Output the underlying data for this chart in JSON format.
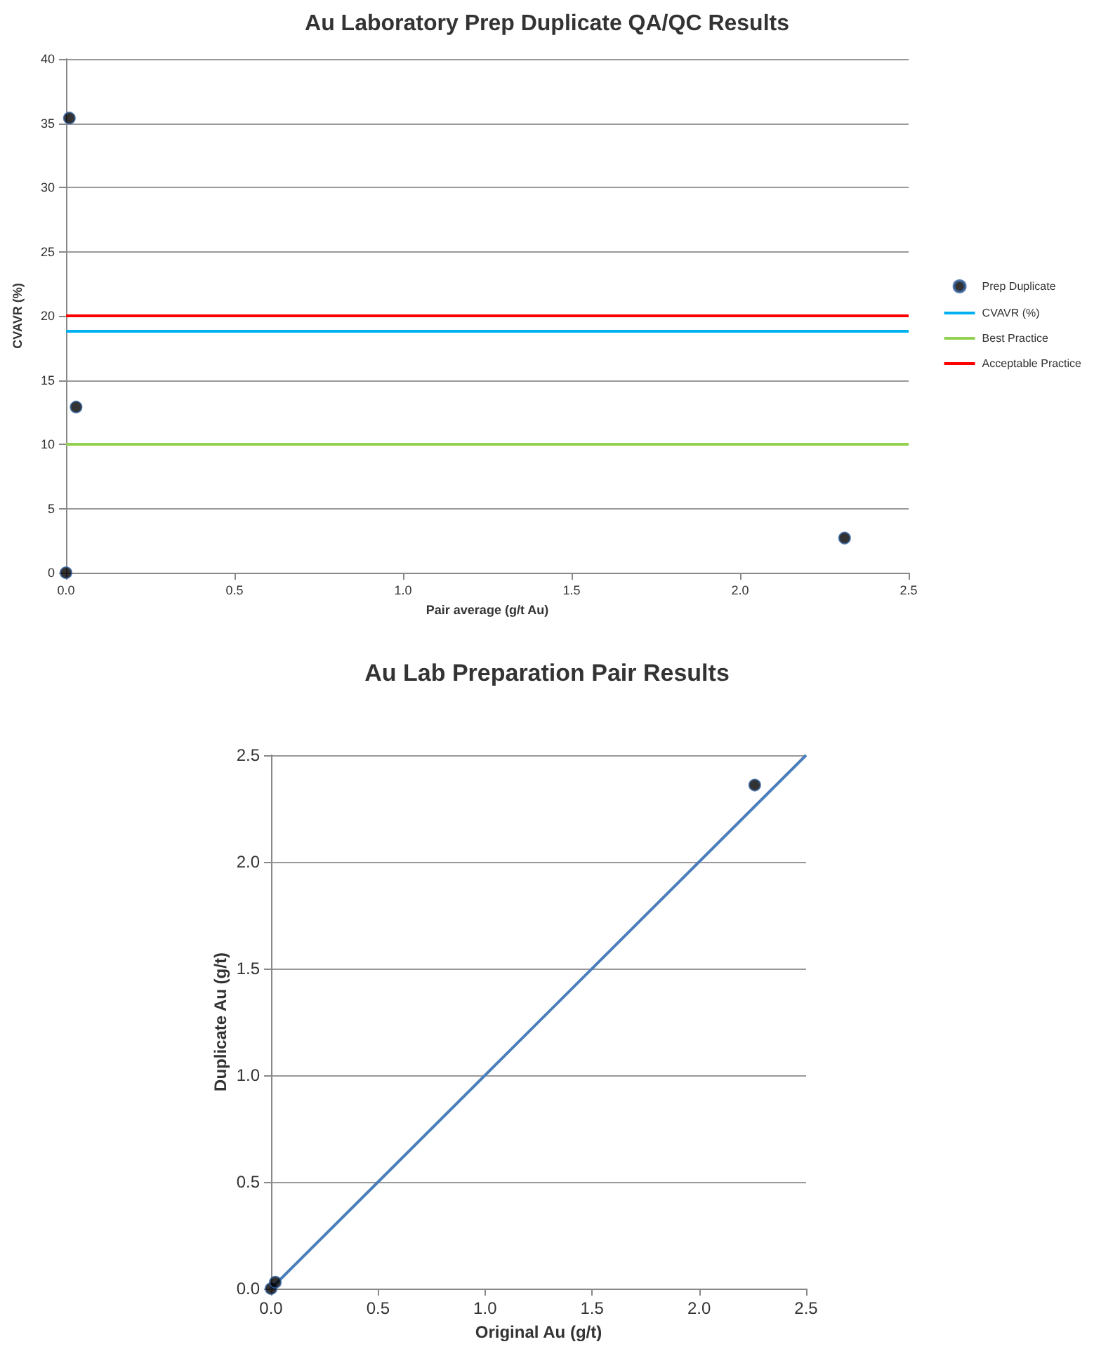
{
  "chart_data": [
    {
      "type": "scatter",
      "title": "Au Laboratory Prep Duplicate QA/QC Results",
      "xlabel": "Pair average (g/t Au)",
      "ylabel": "CVAVR (%)",
      "xlim": [
        0,
        2.5
      ],
      "xticks": [
        {
          "value": 0,
          "label": "0.0"
        },
        {
          "value": 0.5,
          "label": "0.5"
        },
        {
          "value": 1,
          "label": "1.0"
        },
        {
          "value": 1.5,
          "label": "1.5"
        },
        {
          "value": 2,
          "label": "2.0"
        },
        {
          "value": 2.5,
          "label": "2.5"
        }
      ],
      "ylim": [
        0,
        40
      ],
      "yticks": [
        0,
        5,
        10,
        15,
        20,
        25,
        30,
        35,
        40
      ],
      "grid": "y",
      "legend": "right",
      "series": [
        {
          "name": "Prep Duplicate",
          "marker": "circle",
          "color": "#000000",
          "x": [
            0.0,
            0.01,
            0.03,
            2.31
          ],
          "values": [
            0,
            35.4,
            12.9,
            2.7
          ]
        },
        {
          "name": "CVAVR (%)",
          "type": "line",
          "marker": "none",
          "color": "#00b0f0",
          "x": [
            0,
            2.5
          ],
          "values": [
            18.8,
            18.8
          ]
        },
        {
          "name": "Best Practice",
          "type": "line",
          "marker": "none",
          "color": "#92d050",
          "x": [
            0,
            2.5
          ],
          "values": [
            10,
            10
          ]
        },
        {
          "name": "Acceptable Practice",
          "type": "line",
          "marker": "none",
          "color": "#ff0000",
          "x": [
            0,
            2.5
          ],
          "values": [
            20,
            20
          ]
        }
      ]
    },
    {
      "type": "scatter",
      "title": "Au Lab Preparation Pair Results",
      "xlabel": "Original Au (g/t)",
      "ylabel": "Duplicate Au (g/t)",
      "xlim": [
        0,
        2.5
      ],
      "xticks": [
        {
          "value": 0,
          "label": "0.0"
        },
        {
          "value": 0.5,
          "label": "0.5"
        },
        {
          "value": 1,
          "label": "1.0"
        },
        {
          "value": 1.5,
          "label": "1.5"
        },
        {
          "value": 2,
          "label": "2.0"
        },
        {
          "value": 2.5,
          "label": "2.5"
        }
      ],
      "ylim": [
        0,
        2.5
      ],
      "yticks": [
        {
          "value": 0,
          "label": "0.0"
        },
        {
          "value": 0.5,
          "label": "0.5"
        },
        {
          "value": 1,
          "label": "1.0"
        },
        {
          "value": 1.5,
          "label": "1.5"
        },
        {
          "value": 2,
          "label": "2.0"
        },
        {
          "value": 2.5,
          "label": "2.5"
        }
      ],
      "grid": "y",
      "series": [
        {
          "type": "line",
          "marker": "none",
          "color": "#4a7ebb",
          "x": [
            0,
            2.5
          ],
          "values": [
            0,
            2.5
          ]
        },
        {
          "marker": "circle",
          "color": "#000000",
          "x": [
            0.0,
            0.02,
            2.26
          ],
          "values": [
            0.0,
            0.03,
            2.36
          ]
        }
      ]
    }
  ]
}
